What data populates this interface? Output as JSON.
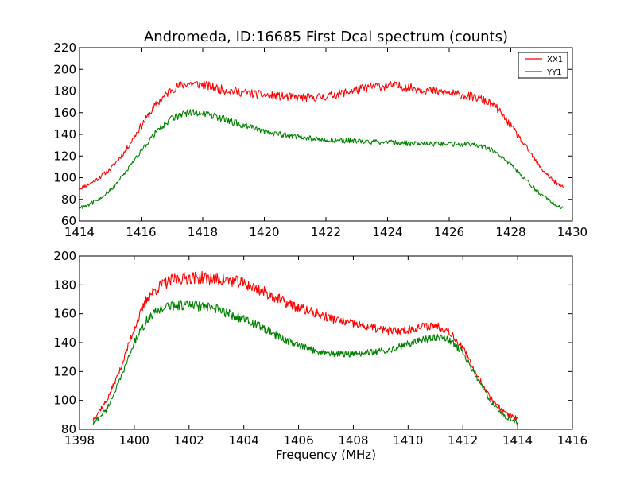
{
  "chart_data": [
    {
      "type": "line",
      "title": "Andromeda, ID:16685 First Dcal spectrum (counts)",
      "xlabel": "",
      "ylabel": "",
      "xlim": [
        1414,
        1430
      ],
      "ylim": [
        60,
        220
      ],
      "xticks": [
        1414,
        1416,
        1418,
        1420,
        1422,
        1424,
        1426,
        1428,
        1430
      ],
      "yticks": [
        60,
        80,
        100,
        120,
        140,
        160,
        180,
        200,
        220
      ],
      "grid": false,
      "legend_position": "top-right",
      "series": [
        {
          "name": "XX1",
          "color": "#ff0000",
          "x": [
            1414.0,
            1414.5,
            1415.0,
            1415.5,
            1416.0,
            1416.5,
            1417.0,
            1417.5,
            1418.0,
            1418.5,
            1419.0,
            1419.5,
            1420.0,
            1420.5,
            1421.0,
            1421.5,
            1422.0,
            1422.5,
            1423.0,
            1423.5,
            1424.0,
            1424.5,
            1425.0,
            1425.5,
            1426.0,
            1426.5,
            1427.0,
            1427.5,
            1428.0,
            1428.5,
            1429.0,
            1429.5,
            1429.7
          ],
          "y": [
            90,
            97,
            108,
            125,
            148,
            168,
            182,
            187,
            186,
            182,
            180,
            178,
            176,
            175,
            174,
            174,
            175,
            178,
            181,
            184,
            185,
            184,
            182,
            180,
            178,
            176,
            173,
            166,
            148,
            128,
            108,
            94,
            92
          ]
        },
        {
          "name": "YY1",
          "color": "#008000",
          "x": [
            1414.0,
            1414.5,
            1415.0,
            1415.5,
            1416.0,
            1416.5,
            1417.0,
            1417.5,
            1418.0,
            1418.5,
            1419.0,
            1419.5,
            1420.0,
            1420.5,
            1421.0,
            1421.5,
            1422.0,
            1422.5,
            1423.0,
            1423.5,
            1424.0,
            1424.5,
            1425.0,
            1425.5,
            1426.0,
            1426.5,
            1427.0,
            1427.5,
            1428.0,
            1428.5,
            1429.0,
            1429.5,
            1429.7
          ],
          "y": [
            72,
            78,
            88,
            105,
            125,
            143,
            155,
            160,
            160,
            156,
            151,
            147,
            143,
            140,
            138,
            136,
            135,
            134,
            134,
            133,
            133,
            132,
            131,
            131,
            131,
            131,
            130,
            124,
            112,
            97,
            84,
            74,
            71
          ]
        }
      ]
    },
    {
      "type": "line",
      "title": "",
      "xlabel": "Frequency (MHz)",
      "ylabel": "",
      "xlim": [
        1398,
        1416
      ],
      "ylim": [
        80,
        200
      ],
      "xticks": [
        1398,
        1400,
        1402,
        1404,
        1406,
        1408,
        1410,
        1412,
        1414,
        1416
      ],
      "yticks": [
        80,
        100,
        120,
        140,
        160,
        180,
        200
      ],
      "grid": false,
      "series": [
        {
          "color": "#ff0000",
          "x": [
            1398.5,
            1399.0,
            1399.5,
            1400.0,
            1400.5,
            1401.0,
            1401.5,
            1402.0,
            1402.5,
            1403.0,
            1403.5,
            1404.0,
            1404.5,
            1405.0,
            1405.5,
            1406.0,
            1406.5,
            1407.0,
            1407.5,
            1408.0,
            1408.5,
            1409.0,
            1409.5,
            1410.0,
            1410.5,
            1411.0,
            1411.5,
            1412.0,
            1412.5,
            1413.0,
            1413.5,
            1414.0
          ],
          "y": [
            87,
            100,
            122,
            150,
            172,
            180,
            184,
            185,
            185,
            184,
            183,
            181,
            177,
            173,
            168,
            164,
            161,
            158,
            155,
            153,
            151,
            149,
            148,
            149,
            151,
            152,
            148,
            136,
            118,
            102,
            92,
            87
          ]
        },
        {
          "color": "#008000",
          "x": [
            1398.5,
            1399.0,
            1399.5,
            1400.0,
            1400.5,
            1401.0,
            1401.5,
            1402.0,
            1402.5,
            1403.0,
            1403.5,
            1404.0,
            1404.5,
            1405.0,
            1405.5,
            1406.0,
            1406.5,
            1407.0,
            1407.5,
            1408.0,
            1408.5,
            1409.0,
            1409.5,
            1410.0,
            1410.5,
            1411.0,
            1411.5,
            1412.0,
            1412.5,
            1413.0,
            1413.5,
            1414.0
          ],
          "y": [
            84,
            94,
            115,
            140,
            157,
            164,
            166,
            166,
            165,
            163,
            160,
            156,
            152,
            147,
            142,
            138,
            135,
            133,
            132,
            132,
            133,
            134,
            136,
            139,
            142,
            144,
            142,
            133,
            116,
            100,
            89,
            85
          ]
        }
      ]
    }
  ]
}
